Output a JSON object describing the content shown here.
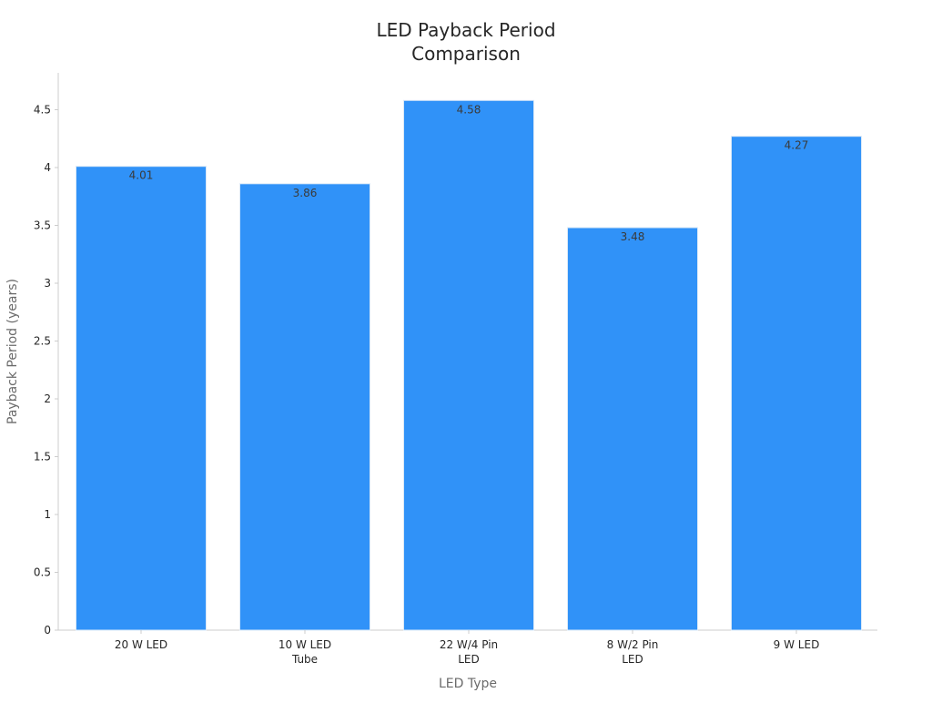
{
  "chart_data": {
    "type": "bar",
    "title_lines": [
      "LED Payback Period",
      "Comparison"
    ],
    "xlabel": "LED Type",
    "ylabel": "Payback Period (years)",
    "categories": [
      [
        "20 W LED"
      ],
      [
        "10 W LED",
        "Tube"
      ],
      [
        "22 W/4 Pin",
        "LED"
      ],
      [
        "8 W/2 Pin",
        "LED"
      ],
      [
        "9 W LED"
      ]
    ],
    "values": [
      4.01,
      3.86,
      4.58,
      3.48,
      4.27
    ],
    "data_labels": [
      "4.01",
      "3.86",
      "4.58",
      "3.48",
      "4.27"
    ],
    "y_ticks": [
      0,
      0.5,
      1,
      1.5,
      2,
      2.5,
      3,
      3.5,
      4,
      4.5
    ],
    "y_tick_labels": [
      "0",
      "0.5",
      "1",
      "1.5",
      "2",
      "2.5",
      "3",
      "3.5",
      "4",
      "4.5"
    ],
    "ylim": [
      0,
      4.82
    ],
    "grid": false,
    "legend": "none",
    "colors": {
      "bar": "#3092f8",
      "bar_edge": "#d9e8f7",
      "axis": "#cccccc",
      "text": "#262626",
      "axis_title": "#6b6b6b"
    }
  }
}
